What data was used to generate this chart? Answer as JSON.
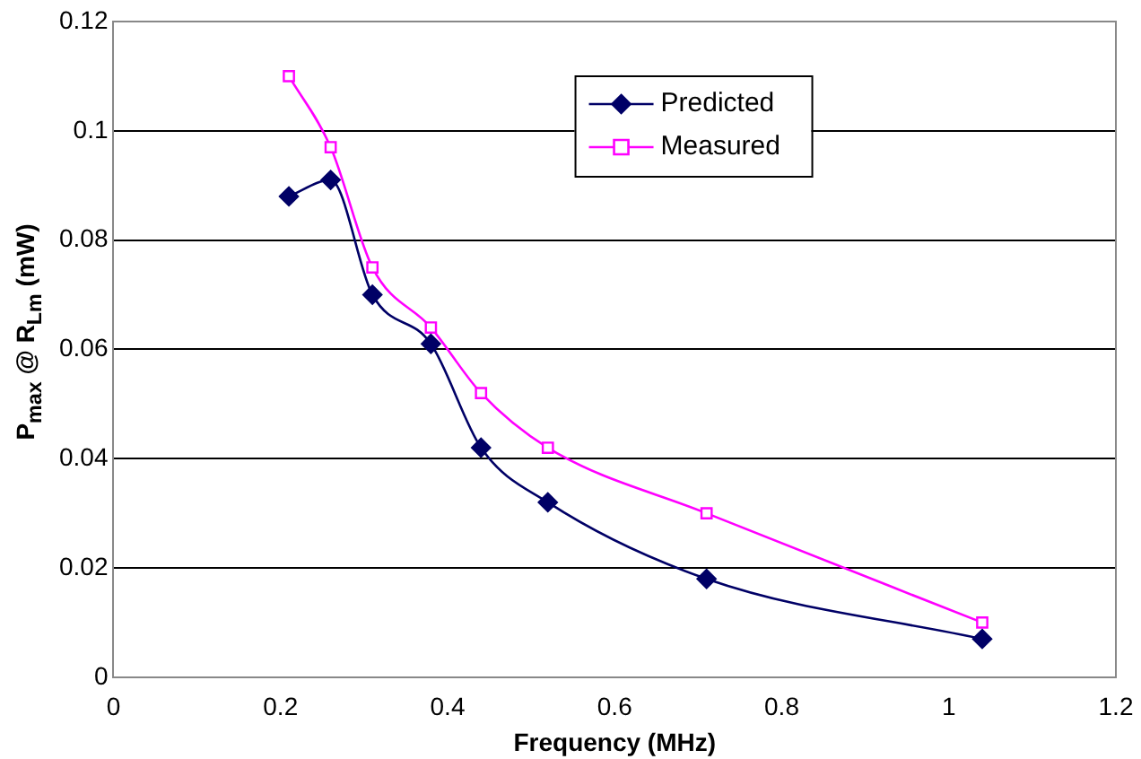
{
  "chart_data": {
    "type": "line",
    "xlabel": "Frequency (MHz)",
    "ylabel": "P$_{max}$ @ R$_{Lm}$ (mW)",
    "xlim": [
      0,
      1.2
    ],
    "xticks": [
      0,
      0.2,
      0.4,
      0.6,
      0.8,
      1,
      1.2
    ],
    "ylim": [
      0,
      0.12
    ],
    "yticks": [
      0,
      0.02,
      0.04,
      0.06,
      0.08,
      0.1,
      0.12
    ],
    "grid": "y",
    "legend": "top right",
    "series": [
      {
        "name": "Predicted",
        "color": "#000066",
        "marker": "diamond",
        "x": [
          0.21,
          0.26,
          0.31,
          0.38,
          0.44,
          0.52,
          0.71,
          1.04
        ],
        "values": [
          0.088,
          0.091,
          0.07,
          0.061,
          0.042,
          0.032,
          0.018,
          0.007
        ]
      },
      {
        "name": "Measured",
        "color": "#ff00ff",
        "marker": "square",
        "x": [
          0.21,
          0.26,
          0.31,
          0.38,
          0.44,
          0.52,
          0.71,
          1.04
        ],
        "values": [
          0.11,
          0.097,
          0.075,
          0.064,
          0.052,
          0.042,
          0.03,
          0.01
        ]
      }
    ]
  }
}
